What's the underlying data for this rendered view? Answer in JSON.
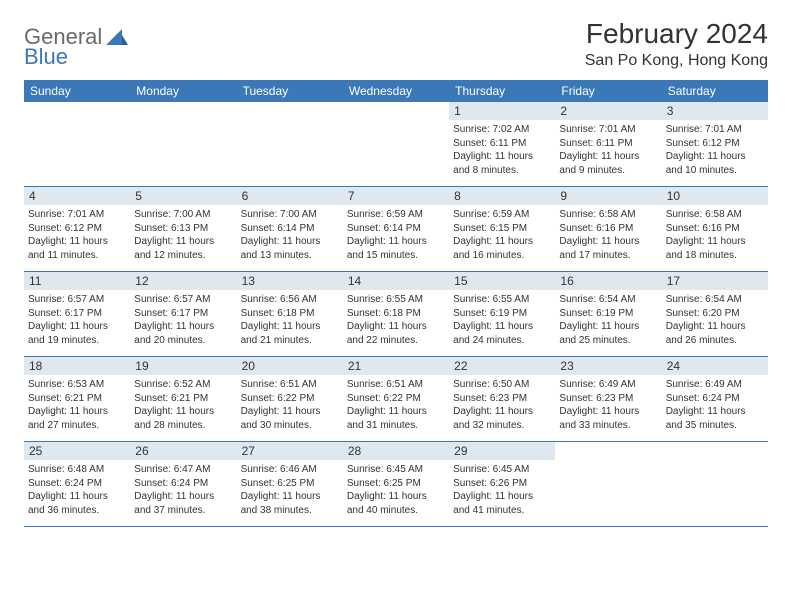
{
  "logo": {
    "text1": "General",
    "text2": "Blue"
  },
  "title": {
    "month": "February 2024",
    "location": "San Po Kong, Hong Kong"
  },
  "colors": {
    "accent": "#3b78b8",
    "daybar": "#dfe8ee",
    "text": "#333333",
    "logo_gray": "#6a6a6a"
  },
  "weekdays": [
    "Sunday",
    "Monday",
    "Tuesday",
    "Wednesday",
    "Thursday",
    "Friday",
    "Saturday"
  ],
  "weeks": [
    [
      {
        "num": "",
        "sunrise": "",
        "sunset": "",
        "daylight": ""
      },
      {
        "num": "",
        "sunrise": "",
        "sunset": "",
        "daylight": ""
      },
      {
        "num": "",
        "sunrise": "",
        "sunset": "",
        "daylight": ""
      },
      {
        "num": "",
        "sunrise": "",
        "sunset": "",
        "daylight": ""
      },
      {
        "num": "1",
        "sunrise": "Sunrise: 7:02 AM",
        "sunset": "Sunset: 6:11 PM",
        "daylight": "Daylight: 11 hours and 8 minutes."
      },
      {
        "num": "2",
        "sunrise": "Sunrise: 7:01 AM",
        "sunset": "Sunset: 6:11 PM",
        "daylight": "Daylight: 11 hours and 9 minutes."
      },
      {
        "num": "3",
        "sunrise": "Sunrise: 7:01 AM",
        "sunset": "Sunset: 6:12 PM",
        "daylight": "Daylight: 11 hours and 10 minutes."
      }
    ],
    [
      {
        "num": "4",
        "sunrise": "Sunrise: 7:01 AM",
        "sunset": "Sunset: 6:12 PM",
        "daylight": "Daylight: 11 hours and 11 minutes."
      },
      {
        "num": "5",
        "sunrise": "Sunrise: 7:00 AM",
        "sunset": "Sunset: 6:13 PM",
        "daylight": "Daylight: 11 hours and 12 minutes."
      },
      {
        "num": "6",
        "sunrise": "Sunrise: 7:00 AM",
        "sunset": "Sunset: 6:14 PM",
        "daylight": "Daylight: 11 hours and 13 minutes."
      },
      {
        "num": "7",
        "sunrise": "Sunrise: 6:59 AM",
        "sunset": "Sunset: 6:14 PM",
        "daylight": "Daylight: 11 hours and 15 minutes."
      },
      {
        "num": "8",
        "sunrise": "Sunrise: 6:59 AM",
        "sunset": "Sunset: 6:15 PM",
        "daylight": "Daylight: 11 hours and 16 minutes."
      },
      {
        "num": "9",
        "sunrise": "Sunrise: 6:58 AM",
        "sunset": "Sunset: 6:16 PM",
        "daylight": "Daylight: 11 hours and 17 minutes."
      },
      {
        "num": "10",
        "sunrise": "Sunrise: 6:58 AM",
        "sunset": "Sunset: 6:16 PM",
        "daylight": "Daylight: 11 hours and 18 minutes."
      }
    ],
    [
      {
        "num": "11",
        "sunrise": "Sunrise: 6:57 AM",
        "sunset": "Sunset: 6:17 PM",
        "daylight": "Daylight: 11 hours and 19 minutes."
      },
      {
        "num": "12",
        "sunrise": "Sunrise: 6:57 AM",
        "sunset": "Sunset: 6:17 PM",
        "daylight": "Daylight: 11 hours and 20 minutes."
      },
      {
        "num": "13",
        "sunrise": "Sunrise: 6:56 AM",
        "sunset": "Sunset: 6:18 PM",
        "daylight": "Daylight: 11 hours and 21 minutes."
      },
      {
        "num": "14",
        "sunrise": "Sunrise: 6:55 AM",
        "sunset": "Sunset: 6:18 PM",
        "daylight": "Daylight: 11 hours and 22 minutes."
      },
      {
        "num": "15",
        "sunrise": "Sunrise: 6:55 AM",
        "sunset": "Sunset: 6:19 PM",
        "daylight": "Daylight: 11 hours and 24 minutes."
      },
      {
        "num": "16",
        "sunrise": "Sunrise: 6:54 AM",
        "sunset": "Sunset: 6:19 PM",
        "daylight": "Daylight: 11 hours and 25 minutes."
      },
      {
        "num": "17",
        "sunrise": "Sunrise: 6:54 AM",
        "sunset": "Sunset: 6:20 PM",
        "daylight": "Daylight: 11 hours and 26 minutes."
      }
    ],
    [
      {
        "num": "18",
        "sunrise": "Sunrise: 6:53 AM",
        "sunset": "Sunset: 6:21 PM",
        "daylight": "Daylight: 11 hours and 27 minutes."
      },
      {
        "num": "19",
        "sunrise": "Sunrise: 6:52 AM",
        "sunset": "Sunset: 6:21 PM",
        "daylight": "Daylight: 11 hours and 28 minutes."
      },
      {
        "num": "20",
        "sunrise": "Sunrise: 6:51 AM",
        "sunset": "Sunset: 6:22 PM",
        "daylight": "Daylight: 11 hours and 30 minutes."
      },
      {
        "num": "21",
        "sunrise": "Sunrise: 6:51 AM",
        "sunset": "Sunset: 6:22 PM",
        "daylight": "Daylight: 11 hours and 31 minutes."
      },
      {
        "num": "22",
        "sunrise": "Sunrise: 6:50 AM",
        "sunset": "Sunset: 6:23 PM",
        "daylight": "Daylight: 11 hours and 32 minutes."
      },
      {
        "num": "23",
        "sunrise": "Sunrise: 6:49 AM",
        "sunset": "Sunset: 6:23 PM",
        "daylight": "Daylight: 11 hours and 33 minutes."
      },
      {
        "num": "24",
        "sunrise": "Sunrise: 6:49 AM",
        "sunset": "Sunset: 6:24 PM",
        "daylight": "Daylight: 11 hours and 35 minutes."
      }
    ],
    [
      {
        "num": "25",
        "sunrise": "Sunrise: 6:48 AM",
        "sunset": "Sunset: 6:24 PM",
        "daylight": "Daylight: 11 hours and 36 minutes."
      },
      {
        "num": "26",
        "sunrise": "Sunrise: 6:47 AM",
        "sunset": "Sunset: 6:24 PM",
        "daylight": "Daylight: 11 hours and 37 minutes."
      },
      {
        "num": "27",
        "sunrise": "Sunrise: 6:46 AM",
        "sunset": "Sunset: 6:25 PM",
        "daylight": "Daylight: 11 hours and 38 minutes."
      },
      {
        "num": "28",
        "sunrise": "Sunrise: 6:45 AM",
        "sunset": "Sunset: 6:25 PM",
        "daylight": "Daylight: 11 hours and 40 minutes."
      },
      {
        "num": "29",
        "sunrise": "Sunrise: 6:45 AM",
        "sunset": "Sunset: 6:26 PM",
        "daylight": "Daylight: 11 hours and 41 minutes."
      },
      {
        "num": "",
        "sunrise": "",
        "sunset": "",
        "daylight": ""
      },
      {
        "num": "",
        "sunrise": "",
        "sunset": "",
        "daylight": ""
      }
    ]
  ]
}
